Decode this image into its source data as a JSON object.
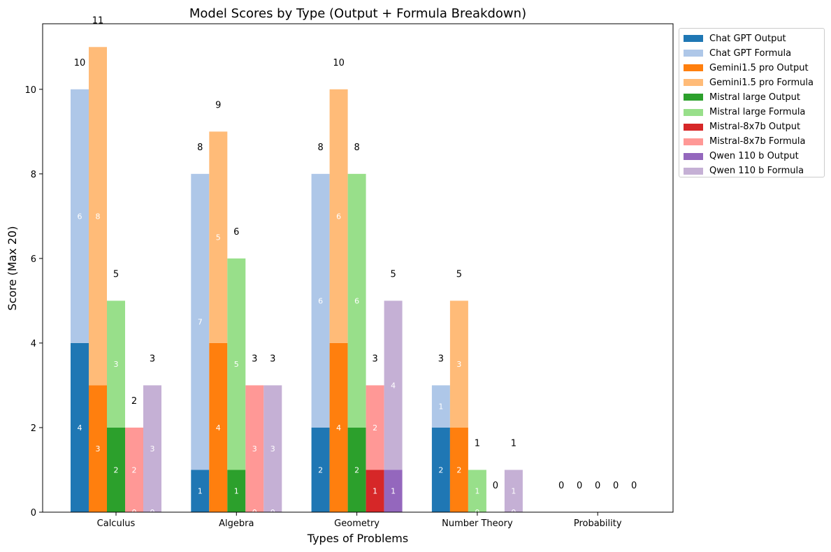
{
  "chart_data": {
    "type": "bar",
    "title": "Model Scores by Type (Output + Formula Breakdown)",
    "xlabel": "Types of Problems",
    "ylabel": "Score (Max 20)",
    "ylim": [
      0,
      11.55
    ],
    "yticks": [
      0,
      2,
      4,
      6,
      8,
      10
    ],
    "grid": false,
    "legend_position": "outside-top-right",
    "categories": [
      "Calculus",
      "Algebra",
      "Geometry",
      "Number Theory",
      "Probability"
    ],
    "models": [
      {
        "name": "Chat GPT",
        "output_label": "Chat GPT Output",
        "formula_label": "Chat GPT Formula",
        "output_color": "#1f77b4",
        "formula_color": "#aec7e8",
        "output": [
          4,
          1,
          2,
          2,
          0
        ],
        "formula": [
          6,
          7,
          6,
          1,
          0
        ],
        "totals": [
          10,
          8,
          8,
          3,
          0
        ]
      },
      {
        "name": "Gemini1.5 pro",
        "output_label": "Gemini1.5 pro Output",
        "formula_label": "Gemini1.5 pro Formula",
        "output_color": "#ff7f0e",
        "formula_color": "#ffbb78",
        "output": [
          3,
          4,
          4,
          2,
          0
        ],
        "formula": [
          8,
          5,
          6,
          3,
          0
        ],
        "totals": [
          11,
          9,
          10,
          5,
          0
        ]
      },
      {
        "name": "Mistral large",
        "output_label": "Mistral large Output",
        "formula_label": "Mistral large Formula",
        "output_color": "#2ca02c",
        "formula_color": "#98df8a",
        "output": [
          2,
          1,
          2,
          0,
          0
        ],
        "formula": [
          3,
          5,
          6,
          1,
          0
        ],
        "totals": [
          5,
          6,
          8,
          1,
          0
        ]
      },
      {
        "name": "Mistral-8x7b",
        "output_label": "Mistral-8x7b Output",
        "formula_label": "Mistral-8x7b Formula",
        "output_color": "#d62728",
        "formula_color": "#ff9896",
        "output": [
          0,
          0,
          1,
          0,
          0
        ],
        "formula": [
          2,
          3,
          2,
          0,
          0
        ],
        "totals": [
          2,
          3,
          3,
          0,
          0
        ]
      },
      {
        "name": "Qwen 110 b",
        "output_label": "Qwen 110 b Output",
        "formula_label": "Qwen 110 b Formula",
        "output_color": "#9467bd",
        "formula_color": "#c5b0d5",
        "output": [
          0,
          0,
          1,
          0,
          0
        ],
        "formula": [
          3,
          3,
          4,
          1,
          0
        ],
        "totals": [
          3,
          3,
          5,
          1,
          0
        ]
      }
    ]
  }
}
